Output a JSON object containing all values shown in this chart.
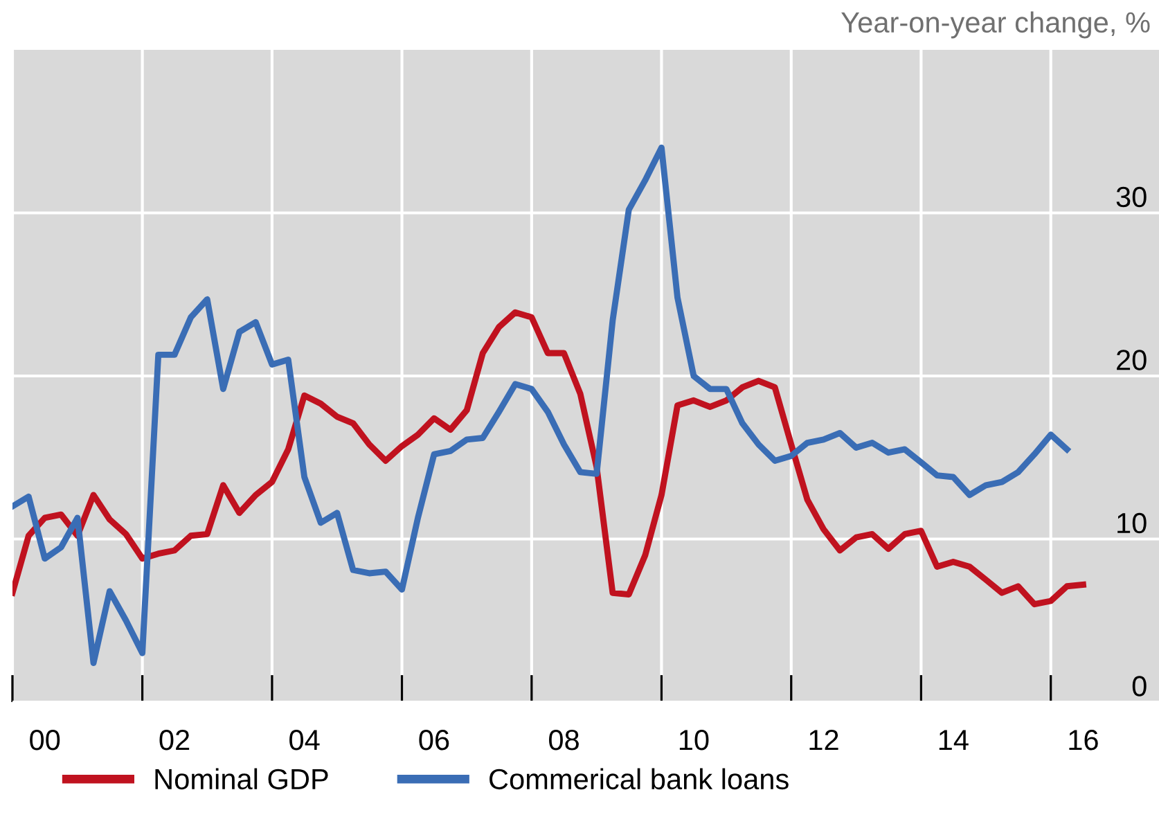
{
  "chart_data": {
    "type": "line",
    "ylabel": "Year-on-year change, %",
    "xlim": [
      "2000-01-01",
      "2017-09-01"
    ],
    "ylim": [
      0,
      40
    ],
    "xticks": [
      {
        "value": "2000-01-01",
        "label": null
      },
      {
        "value": "2002-01-01",
        "label": null
      },
      {
        "value": "2004-01-01",
        "label": null
      },
      {
        "value": "2006-01-01",
        "label": null
      },
      {
        "value": "2008-01-01",
        "label": null
      },
      {
        "value": "2010-01-01",
        "label": null
      },
      {
        "value": "2012-01-01",
        "label": null
      },
      {
        "value": "2014-01-01",
        "label": null
      },
      {
        "value": "2016-01-01",
        "label": null
      },
      {
        "value": "2000-07-01",
        "label": "00"
      },
      {
        "value": "2002-07-01",
        "label": "02"
      },
      {
        "value": "2004-07-01",
        "label": "04"
      },
      {
        "value": "2006-07-01",
        "label": "06"
      },
      {
        "value": "2008-07-01",
        "label": "08"
      },
      {
        "value": "2010-07-01",
        "label": "10"
      },
      {
        "value": "2012-07-01",
        "label": "12"
      },
      {
        "value": "2014-07-01",
        "label": "14"
      },
      {
        "value": "2016-07-01",
        "label": "16"
      }
    ],
    "yticks": [
      0,
      10,
      20,
      30
    ],
    "grid": true,
    "legend": "bottom",
    "line_style": "solid",
    "marker": "none",
    "series": [
      {
        "name": "Nominal GDP",
        "color": "#c0121f",
        "x": [
          "2000-01",
          "2000-04",
          "2000-07",
          "2000-10",
          "2001-01",
          "2001-04",
          "2001-07",
          "2001-10",
          "2002-01",
          "2002-04",
          "2002-07",
          "2002-10",
          "2003-01",
          "2003-04",
          "2003-07",
          "2003-10",
          "2004-01",
          "2004-04",
          "2004-07",
          "2004-10",
          "2005-01",
          "2005-04",
          "2005-07",
          "2005-10",
          "2006-01",
          "2006-04",
          "2006-07",
          "2006-10",
          "2007-01",
          "2007-04",
          "2007-07",
          "2007-10",
          "2008-01",
          "2008-04",
          "2008-07",
          "2008-10",
          "2009-01",
          "2009-04",
          "2009-07",
          "2009-10",
          "2010-01",
          "2010-04",
          "2010-07",
          "2010-10",
          "2011-01",
          "2011-04",
          "2011-07",
          "2011-10",
          "2012-01",
          "2012-04",
          "2012-07",
          "2012-10",
          "2013-01",
          "2013-04",
          "2013-07",
          "2013-10",
          "2014-01",
          "2014-04",
          "2014-07",
          "2014-10",
          "2015-01",
          "2015-04",
          "2015-07",
          "2015-10",
          "2016-01",
          "2016-04",
          "2016-07"
        ],
        "values": [
          6.7,
          10.2,
          11.3,
          11.5,
          10.2,
          12.7,
          11.2,
          10.3,
          8.8,
          9.1,
          9.3,
          10.2,
          10.3,
          13.3,
          11.6,
          12.7,
          13.5,
          15.5,
          18.8,
          18.3,
          17.5,
          17.1,
          15.8,
          14.8,
          15.7,
          16.4,
          17.4,
          16.7,
          17.9,
          21.4,
          23.0,
          23.9,
          23.6,
          21.4,
          21.4,
          18.9,
          14.4,
          6.7,
          6.6,
          9.0,
          12.7,
          18.2,
          18.5,
          18.1,
          18.5,
          19.3,
          19.7,
          19.3,
          15.8,
          12.4,
          10.6,
          9.3,
          10.1,
          10.3,
          9.4,
          10.3,
          10.5,
          8.3,
          8.6,
          8.3,
          7.5,
          6.7,
          7.1,
          6.0,
          6.2,
          7.1,
          7.2
        ]
      },
      {
        "name": "Commerical bank loans",
        "color": "#3a6db5",
        "x": [
          "2000-01",
          "2000-04",
          "2000-07",
          "2000-10",
          "2001-01",
          "2001-04",
          "2001-07",
          "2001-10",
          "2002-01",
          "2002-04",
          "2002-07",
          "2002-10",
          "2003-01",
          "2003-04",
          "2003-07",
          "2003-10",
          "2004-01",
          "2004-04",
          "2004-07",
          "2004-10",
          "2005-01",
          "2005-04",
          "2005-07",
          "2005-10",
          "2006-01",
          "2006-04",
          "2006-07",
          "2006-10",
          "2007-01",
          "2007-04",
          "2007-07",
          "2007-10",
          "2008-01",
          "2008-04",
          "2008-07",
          "2008-10",
          "2009-01",
          "2009-04",
          "2009-07",
          "2009-10",
          "2010-01",
          "2010-04",
          "2010-07",
          "2010-10",
          "2011-01",
          "2011-04",
          "2011-07",
          "2011-10",
          "2012-01",
          "2012-04",
          "2012-07",
          "2012-10",
          "2013-01",
          "2013-04",
          "2013-07",
          "2013-10",
          "2014-01",
          "2014-04",
          "2014-07",
          "2014-10",
          "2015-01",
          "2015-04",
          "2015-07",
          "2015-10",
          "2016-01",
          "2016-04"
        ],
        "values": [
          12.0,
          12.6,
          8.8,
          9.5,
          11.3,
          2.4,
          6.8,
          5.0,
          3.0,
          21.3,
          21.3,
          23.6,
          24.7,
          19.2,
          22.7,
          23.3,
          20.7,
          21.0,
          13.8,
          11.0,
          11.6,
          8.1,
          7.9,
          8.0,
          6.9,
          11.3,
          15.2,
          15.4,
          16.1,
          16.2,
          17.8,
          19.5,
          19.2,
          17.8,
          15.8,
          14.1,
          14.0,
          23.4,
          30.2,
          32.0,
          34.0,
          24.8,
          20.0,
          19.2,
          19.2,
          17.1,
          15.8,
          14.8,
          15.1,
          15.9,
          16.1,
          16.5,
          15.6,
          15.9,
          15.3,
          15.5,
          14.7,
          13.9,
          13.8,
          12.7,
          13.3,
          13.5,
          14.1,
          15.2,
          16.4,
          15.5
        ]
      }
    ]
  }
}
